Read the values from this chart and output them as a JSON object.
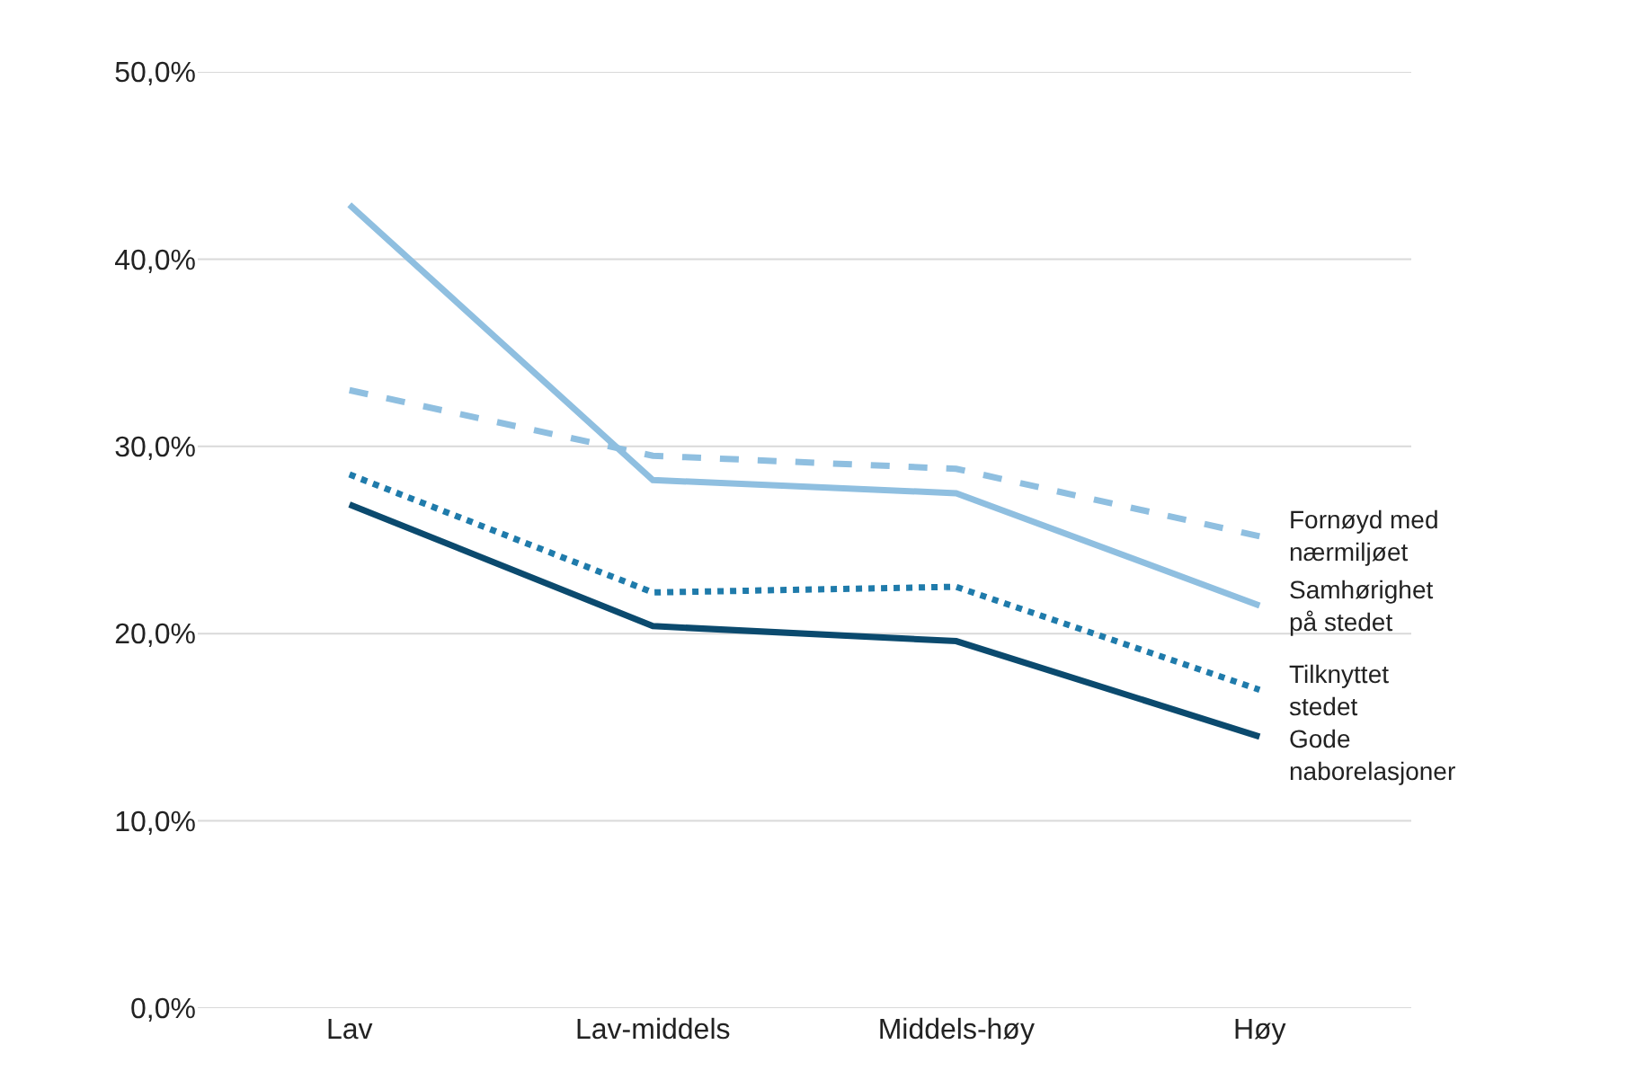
{
  "chart_data": {
    "type": "line",
    "categories": [
      "Lav",
      "Lav-middels",
      "Middels-høy",
      "Høy"
    ],
    "series": [
      {
        "name": "Fornøyd med nærmiljøet",
        "color": "#8fbfe0",
        "line_style": "dashed",
        "values": [
          33.0,
          29.5,
          28.8,
          25.2
        ]
      },
      {
        "name": "Samhørighet på stedet",
        "color": "#8fbfe0",
        "line_style": "solid",
        "values": [
          42.9,
          28.2,
          27.5,
          21.5
        ]
      },
      {
        "name": "Tilknyttet stedet",
        "color": "#1f7bab",
        "line_style": "dotted",
        "values": [
          28.5,
          22.2,
          22.5,
          17.0
        ]
      },
      {
        "name": "Gode naborelasjoner",
        "color": "#0b4a6e",
        "line_style": "solid",
        "values": [
          26.9,
          20.4,
          19.6,
          14.5
        ]
      }
    ],
    "ylim": [
      0,
      50
    ],
    "yticks": [
      {
        "value": 0,
        "label": "0,0%"
      },
      {
        "value": 10,
        "label": "10,0%"
      },
      {
        "value": 20,
        "label": "20,0%"
      },
      {
        "value": 30,
        "label": "30,0%"
      },
      {
        "value": 40,
        "label": "40,0%"
      },
      {
        "value": 50,
        "label": "50,0%"
      }
    ],
    "grid": "y",
    "legend": false,
    "marker": "none"
  }
}
